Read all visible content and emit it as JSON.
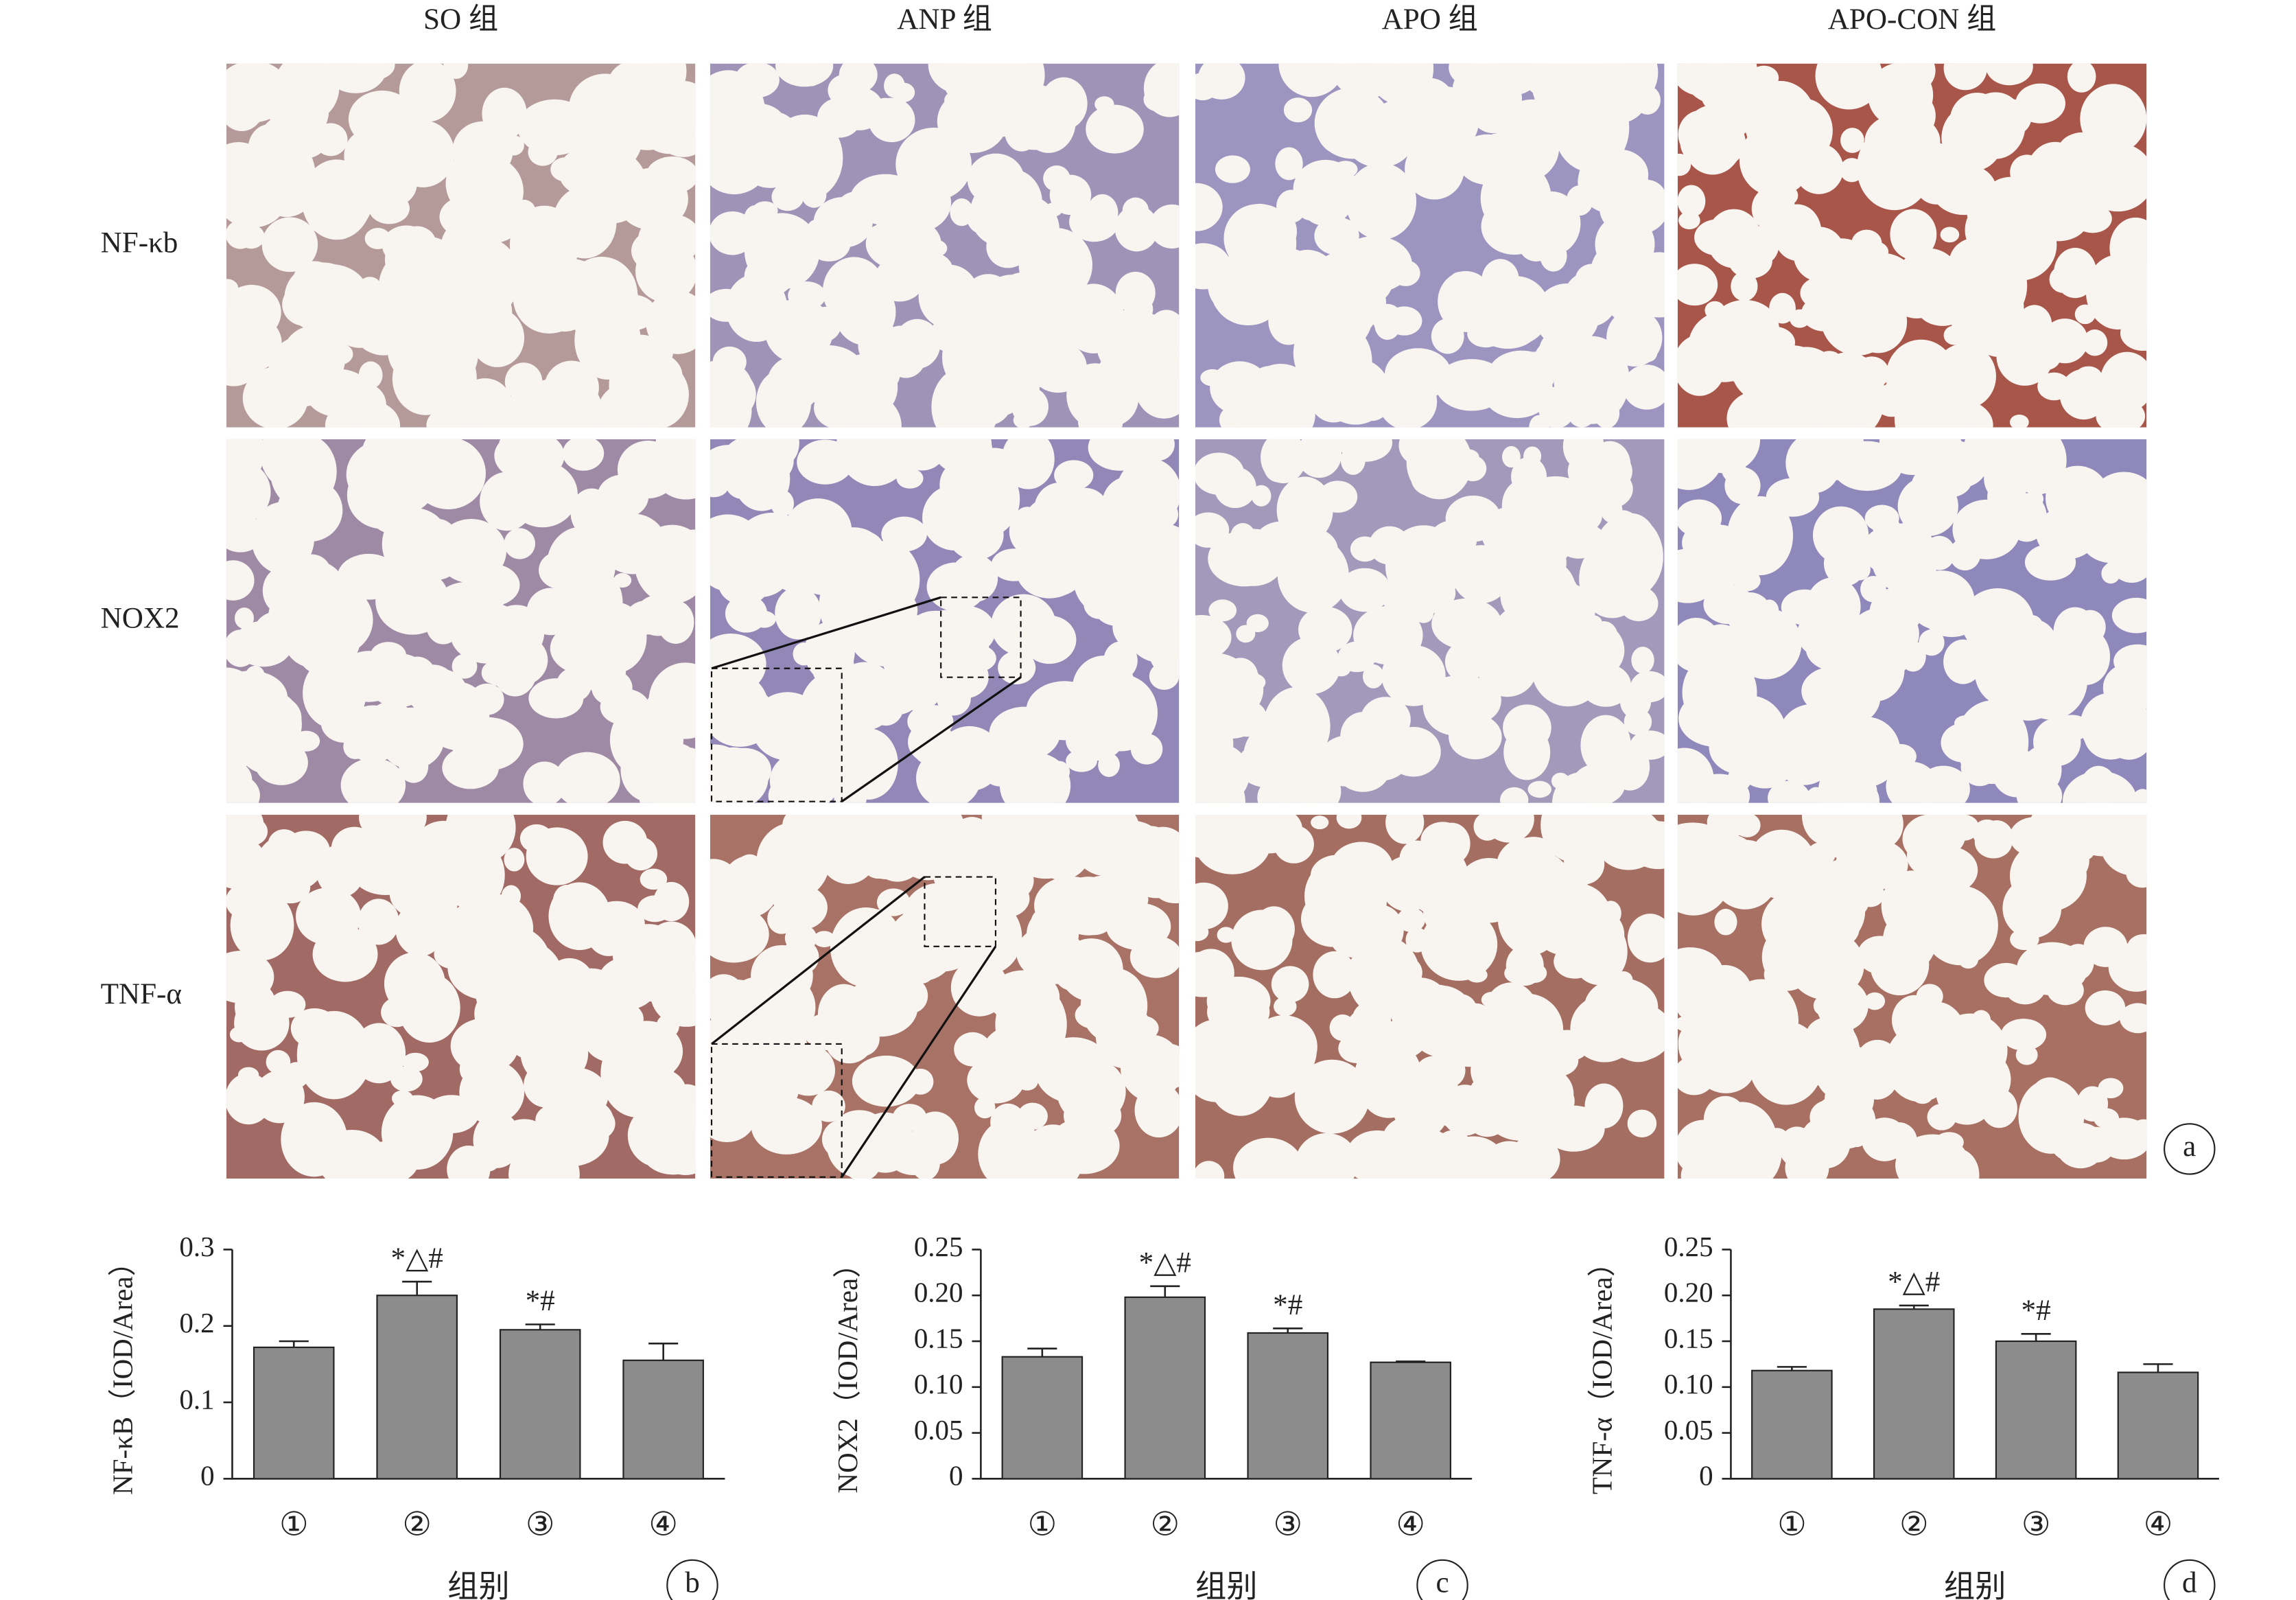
{
  "panel_a": {
    "label": "a",
    "columns": [
      "SO 组",
      "ANP 组",
      "APO 组",
      "APO-CON 组"
    ],
    "rows": [
      "NF-κb",
      "NOX2",
      "TNF-α"
    ]
  },
  "chart_data": [
    {
      "type": "bar",
      "panel": "b",
      "ylabel": "NF-κB（IOD/Area）",
      "xlabel": "组别",
      "categories": [
        "①",
        "②",
        "③",
        "④"
      ],
      "values": [
        0.172,
        0.24,
        0.195,
        0.155
      ],
      "errors": [
        0.008,
        0.018,
        0.007,
        0.022
      ],
      "significance": [
        null,
        "*△#",
        "*#",
        null
      ],
      "color": "#8c8c8c",
      "ylim": [
        0,
        0.3
      ],
      "yticks": [
        0,
        0.1,
        0.2,
        0.3
      ]
    },
    {
      "type": "bar",
      "panel": "c",
      "ylabel": "NOX2（IOD/Area）",
      "xlabel": "组别",
      "categories": [
        "①",
        "②",
        "③",
        "④"
      ],
      "values": [
        0.133,
        0.198,
        0.159,
        0.127
      ],
      "errors": [
        0.009,
        0.012,
        0.005,
        0.001
      ],
      "significance": [
        null,
        "*△#",
        "*#",
        null
      ],
      "color": "#8c8c8c",
      "ylim": [
        0,
        0.25
      ],
      "yticks": [
        0,
        0.05,
        {
          "value": 0.1,
          "label": "0.10"
        },
        0.15,
        {
          "value": 0.2,
          "label": "0.20"
        },
        0.25
      ]
    },
    {
      "type": "bar",
      "panel": "d",
      "ylabel": "TNF-α（IOD/Area）",
      "xlabel": "组别",
      "categories": [
        "①",
        "②",
        "③",
        "④"
      ],
      "values": [
        0.118,
        0.185,
        0.15,
        0.116
      ],
      "errors": [
        0.004,
        0.004,
        0.008,
        0.009
      ],
      "significance": [
        null,
        "*△#",
        "*#",
        null
      ],
      "color": "#8c8c8c",
      "ylim": [
        0,
        0.25
      ],
      "yticks": [
        0,
        0.05,
        {
          "value": 0.1,
          "label": "0.10"
        },
        0.15,
        {
          "value": 0.2,
          "label": "0.20"
        },
        0.25
      ]
    }
  ]
}
